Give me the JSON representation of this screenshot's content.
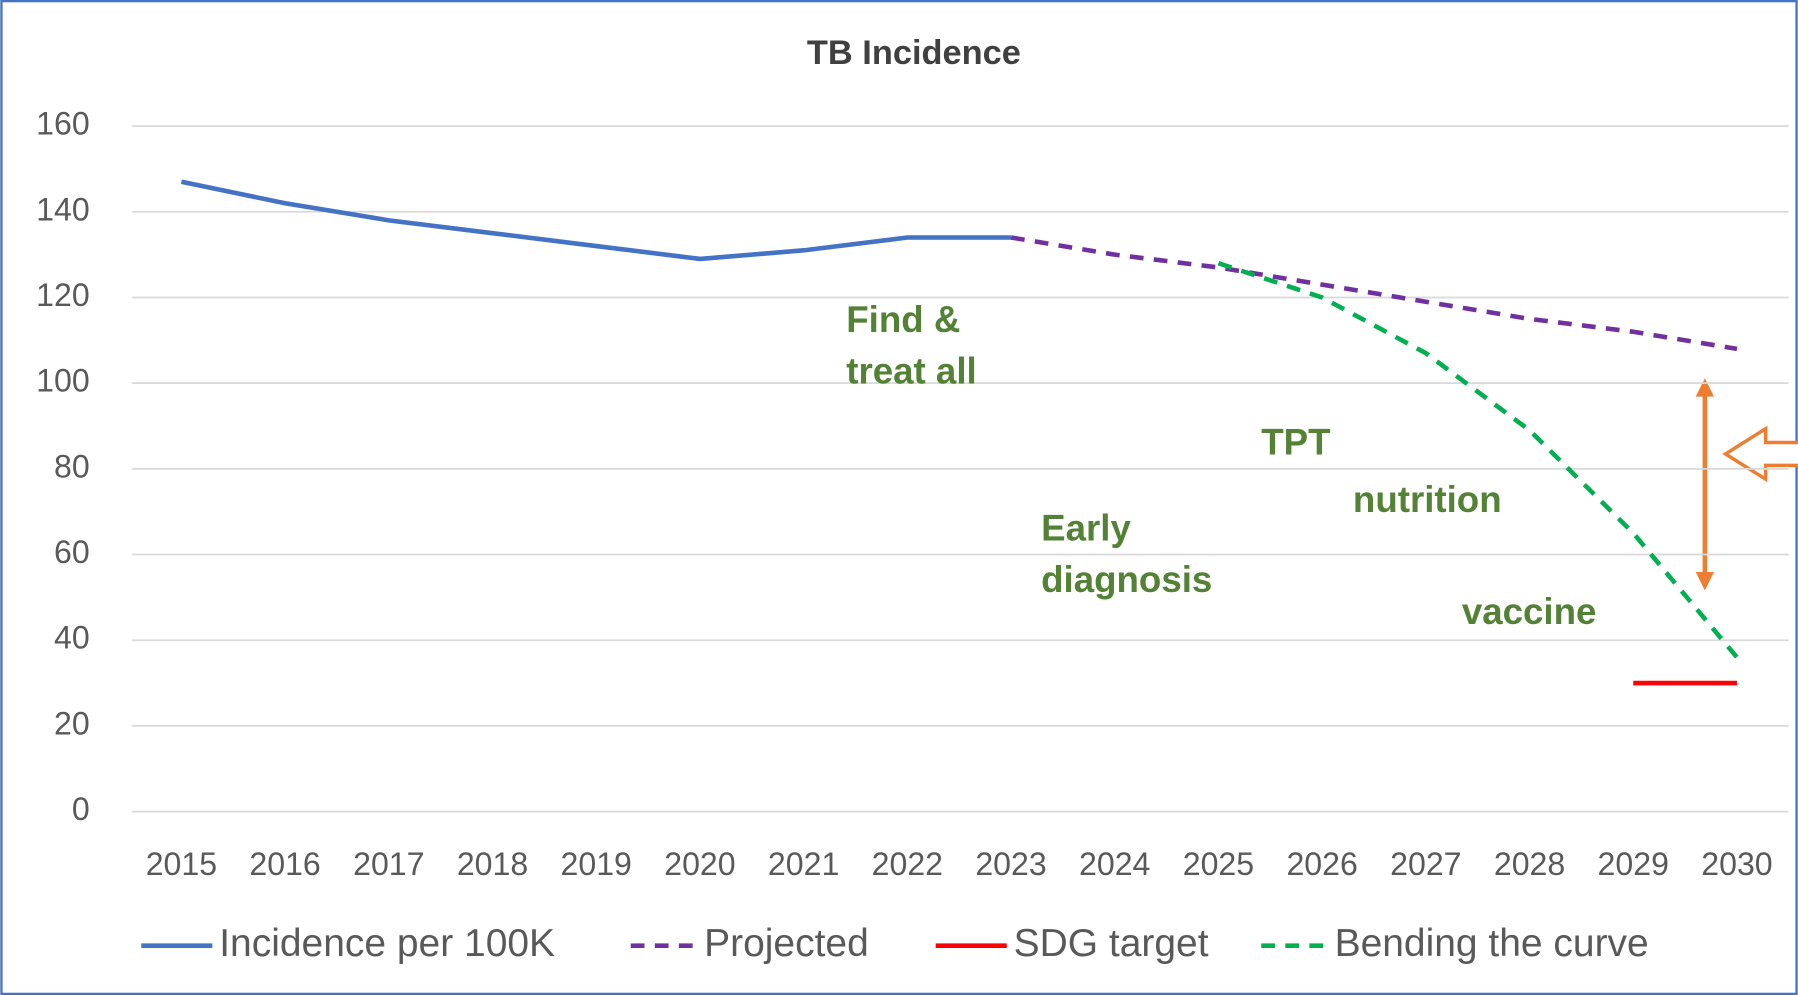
{
  "chart_data": {
    "type": "line",
    "title": "TB Incidence",
    "x": [
      2015,
      2016,
      2017,
      2018,
      2019,
      2020,
      2021,
      2022,
      2023,
      2024,
      2025,
      2026,
      2027,
      2028,
      2029,
      2030
    ],
    "ylim": [
      0,
      160
    ],
    "yticks": [
      0,
      20,
      40,
      60,
      80,
      100,
      120,
      140,
      160
    ],
    "grid": true,
    "legend": "bottom",
    "series": [
      {
        "name": "Incidence per 100K",
        "color": "#4472c4",
        "dash": "solid",
        "values": [
          147,
          142,
          138,
          135,
          132,
          129,
          131,
          134,
          134,
          null,
          null,
          null,
          null,
          null,
          null,
          null
        ]
      },
      {
        "name": "Projected",
        "color": "#7030a0",
        "dash": "dashed",
        "values": [
          null,
          null,
          null,
          null,
          null,
          null,
          null,
          null,
          134,
          130,
          127,
          123,
          119,
          115,
          112,
          108
        ]
      },
      {
        "name": "SDG target",
        "color": "#ff0000",
        "dash": "solid",
        "values": [
          null,
          null,
          null,
          null,
          null,
          null,
          null,
          null,
          null,
          null,
          null,
          null,
          null,
          null,
          30,
          30
        ]
      },
      {
        "name": "Bending the curve",
        "color": "#00b050",
        "dash": "dashed",
        "values": [
          null,
          null,
          null,
          null,
          null,
          null,
          null,
          null,
          null,
          null,
          128,
          120,
          107,
          89,
          65,
          36
        ]
      }
    ],
    "annotations": [
      [
        "Find &",
        "treat all"
      ],
      [
        "Early",
        "diagnosis"
      ],
      [
        "TPT"
      ],
      [
        "nutrition"
      ],
      [
        "vaccine"
      ]
    ]
  }
}
